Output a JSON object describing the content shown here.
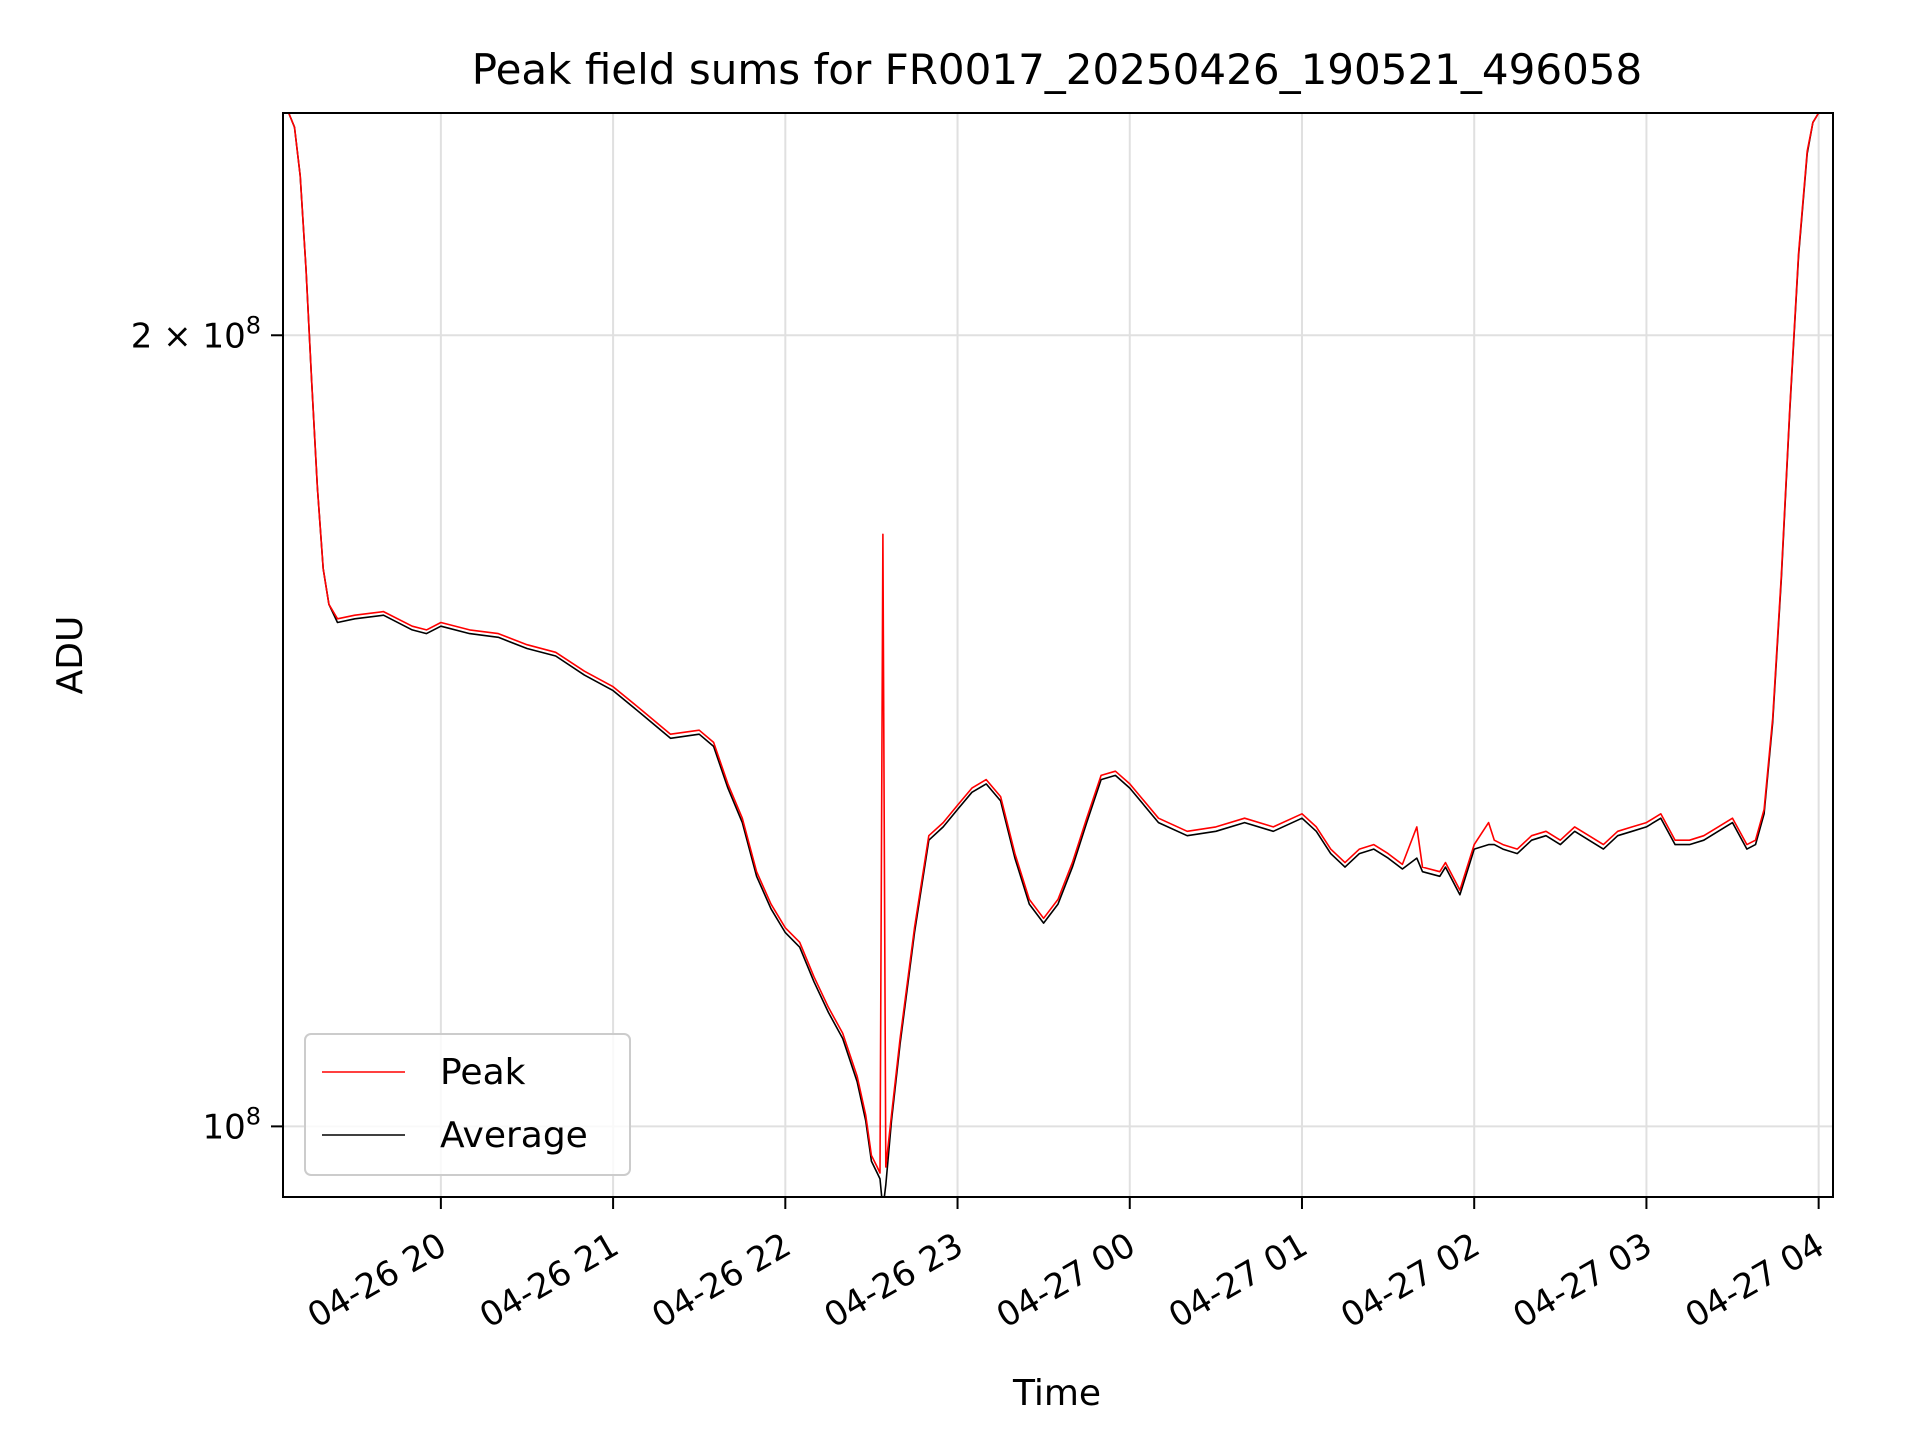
{
  "chart_data": {
    "type": "line",
    "title": "Peak field sums for FR0017_20250426_190521_496058",
    "xlabel": "Time",
    "ylabel": "ADU",
    "x_type": "datetime",
    "y_scale": "log",
    "xlim": [
      "2025-04-26 19:05",
      "2025-04-27 04:05"
    ],
    "ylim": [
      94000000,
      243000000
    ],
    "x_ticks": [
      {
        "value": "2025-04-26 20:00",
        "label": "04-26 20"
      },
      {
        "value": "2025-04-26 21:00",
        "label": "04-26 21"
      },
      {
        "value": "2025-04-26 22:00",
        "label": "04-26 22"
      },
      {
        "value": "2025-04-26 23:00",
        "label": "04-26 23"
      },
      {
        "value": "2025-04-27 00:00",
        "label": "04-27 00"
      },
      {
        "value": "2025-04-27 01:00",
        "label": "04-27 01"
      },
      {
        "value": "2025-04-27 02:00",
        "label": "04-27 02"
      },
      {
        "value": "2025-04-27 03:00",
        "label": "04-27 03"
      },
      {
        "value": "2025-04-27 04:00",
        "label": "04-27 04"
      }
    ],
    "y_ticks": [
      {
        "value": 100000000,
        "label": "10",
        "exp": "8"
      },
      {
        "value": 200000000,
        "label": "2 × 10",
        "exp": "8"
      }
    ],
    "grid": true,
    "legend_position": "lower-left",
    "series": [
      {
        "name": "Peak",
        "color": "#ff0000",
        "points": [
          [
            "2025-04-26 19:05",
            243000000
          ],
          [
            "2025-04-26 19:07",
            243000000
          ],
          [
            "2025-04-26 19:09",
            240000000
          ],
          [
            "2025-04-26 19:11",
            230000000
          ],
          [
            "2025-04-26 19:13",
            212000000
          ],
          [
            "2025-04-26 19:15",
            192000000
          ],
          [
            "2025-04-26 19:17",
            175000000
          ],
          [
            "2025-04-26 19:19",
            163000000
          ],
          [
            "2025-04-26 19:21",
            158000000
          ],
          [
            "2025-04-26 19:24",
            156000000
          ],
          [
            "2025-04-26 19:30",
            156500000
          ],
          [
            "2025-04-26 19:40",
            157000000
          ],
          [
            "2025-04-26 19:50",
            155000000
          ],
          [
            "2025-04-26 19:55",
            154500000
          ],
          [
            "2025-04-26 20:00",
            155500000
          ],
          [
            "2025-04-26 20:10",
            154500000
          ],
          [
            "2025-04-26 20:20",
            154000000
          ],
          [
            "2025-04-26 20:30",
            152500000
          ],
          [
            "2025-04-26 20:40",
            151500000
          ],
          [
            "2025-04-26 20:50",
            149000000
          ],
          [
            "2025-04-26 21:00",
            147000000
          ],
          [
            "2025-04-26 21:10",
            144000000
          ],
          [
            "2025-04-26 21:20",
            141000000
          ],
          [
            "2025-04-26 21:30",
            141500000
          ],
          [
            "2025-04-26 21:35",
            140000000
          ],
          [
            "2025-04-26 21:40",
            135000000
          ],
          [
            "2025-04-26 21:45",
            131000000
          ],
          [
            "2025-04-26 21:50",
            125000000
          ],
          [
            "2025-04-26 21:55",
            121500000
          ],
          [
            "2025-04-26 22:00",
            119000000
          ],
          [
            "2025-04-26 22:05",
            117500000
          ],
          [
            "2025-04-26 22:10",
            114000000
          ],
          [
            "2025-04-26 22:15",
            111000000
          ],
          [
            "2025-04-26 22:20",
            108500000
          ],
          [
            "2025-04-26 22:25",
            104500000
          ],
          [
            "2025-04-26 22:28",
            101000000
          ],
          [
            "2025-04-26 22:30",
            97500000
          ],
          [
            "2025-04-26 22:32",
            96500000
          ],
          [
            "2025-04-26 22:33",
            96000000
          ],
          [
            "2025-04-26 22:34",
            168000000
          ],
          [
            "2025-04-26 22:35",
            96500000
          ],
          [
            "2025-04-26 22:37",
            101000000
          ],
          [
            "2025-04-26 22:40",
            108000000
          ],
          [
            "2025-04-26 22:45",
            119000000
          ],
          [
            "2025-04-26 22:50",
            129000000
          ],
          [
            "2025-04-26 22:55",
            130500000
          ],
          [
            "2025-04-26 23:00",
            132500000
          ],
          [
            "2025-04-26 23:05",
            134500000
          ],
          [
            "2025-04-26 23:10",
            135500000
          ],
          [
            "2025-04-26 23:15",
            133500000
          ],
          [
            "2025-04-26 23:20",
            127000000
          ],
          [
            "2025-04-26 23:25",
            122000000
          ],
          [
            "2025-04-26 23:30",
            120000000
          ],
          [
            "2025-04-26 23:35",
            122000000
          ],
          [
            "2025-04-26 23:40",
            126000000
          ],
          [
            "2025-04-26 23:45",
            131000000
          ],
          [
            "2025-04-26 23:50",
            136000000
          ],
          [
            "2025-04-26 23:55",
            136500000
          ],
          [
            "2025-04-27 00:00",
            135000000
          ],
          [
            "2025-04-27 00:10",
            131000000
          ],
          [
            "2025-04-27 00:20",
            129500000
          ],
          [
            "2025-04-27 00:30",
            130000000
          ],
          [
            "2025-04-27 00:40",
            131000000
          ],
          [
            "2025-04-27 00:50",
            130000000
          ],
          [
            "2025-04-27 01:00",
            131500000
          ],
          [
            "2025-04-27 01:05",
            130000000
          ],
          [
            "2025-04-27 01:10",
            127500000
          ],
          [
            "2025-04-27 01:15",
            126000000
          ],
          [
            "2025-04-27 01:20",
            127500000
          ],
          [
            "2025-04-27 01:25",
            128000000
          ],
          [
            "2025-04-27 01:30",
            127000000
          ],
          [
            "2025-04-27 01:35",
            125800000
          ],
          [
            "2025-04-27 01:40",
            130000000
          ],
          [
            "2025-04-27 01:42",
            125500000
          ],
          [
            "2025-04-27 01:48",
            125000000
          ],
          [
            "2025-04-27 01:50",
            126000000
          ],
          [
            "2025-04-27 01:55",
            123000000
          ],
          [
            "2025-04-27 02:00",
            128000000
          ],
          [
            "2025-04-27 02:05",
            130500000
          ],
          [
            "2025-04-27 02:07",
            128500000
          ],
          [
            "2025-04-27 02:10",
            128000000
          ],
          [
            "2025-04-27 02:15",
            127500000
          ],
          [
            "2025-04-27 02:20",
            129000000
          ],
          [
            "2025-04-27 02:25",
            129500000
          ],
          [
            "2025-04-27 02:30",
            128500000
          ],
          [
            "2025-04-27 02:35",
            130000000
          ],
          [
            "2025-04-27 02:40",
            129000000
          ],
          [
            "2025-04-27 02:45",
            128000000
          ],
          [
            "2025-04-27 02:50",
            129500000
          ],
          [
            "2025-04-27 02:55",
            130000000
          ],
          [
            "2025-04-27 03:00",
            130500000
          ],
          [
            "2025-04-27 03:05",
            131500000
          ],
          [
            "2025-04-27 03:10",
            128500000
          ],
          [
            "2025-04-27 03:15",
            128500000
          ],
          [
            "2025-04-27 03:20",
            129000000
          ],
          [
            "2025-04-27 03:25",
            130000000
          ],
          [
            "2025-04-27 03:30",
            131000000
          ],
          [
            "2025-04-27 03:35",
            128000000
          ],
          [
            "2025-04-27 03:38",
            128500000
          ],
          [
            "2025-04-27 03:41",
            132000000
          ],
          [
            "2025-04-27 03:44",
            143000000
          ],
          [
            "2025-04-27 03:47",
            162000000
          ],
          [
            "2025-04-27 03:50",
            188000000
          ],
          [
            "2025-04-27 03:53",
            215000000
          ],
          [
            "2025-04-27 03:56",
            235000000
          ],
          [
            "2025-04-27 03:58",
            241000000
          ],
          [
            "2025-04-27 04:00",
            243000000
          ],
          [
            "2025-04-27 04:05",
            243000000
          ]
        ]
      },
      {
        "name": "Average",
        "color": "#000000",
        "points": [
          [
            "2025-04-26 19:05",
            243000000
          ],
          [
            "2025-04-26 19:07",
            243000000
          ],
          [
            "2025-04-26 19:09",
            240000000
          ],
          [
            "2025-04-26 19:11",
            230000000
          ],
          [
            "2025-04-26 19:13",
            212000000
          ],
          [
            "2025-04-26 19:15",
            192000000
          ],
          [
            "2025-04-26 19:17",
            175000000
          ],
          [
            "2025-04-26 19:19",
            163000000
          ],
          [
            "2025-04-26 19:21",
            158000000
          ],
          [
            "2025-04-26 19:24",
            155500000
          ],
          [
            "2025-04-26 19:30",
            156000000
          ],
          [
            "2025-04-26 19:40",
            156500000
          ],
          [
            "2025-04-26 19:50",
            154500000
          ],
          [
            "2025-04-26 19:55",
            154000000
          ],
          [
            "2025-04-26 20:00",
            155000000
          ],
          [
            "2025-04-26 20:10",
            154000000
          ],
          [
            "2025-04-26 20:20",
            153500000
          ],
          [
            "2025-04-26 20:30",
            152000000
          ],
          [
            "2025-04-26 20:40",
            151000000
          ],
          [
            "2025-04-26 20:50",
            148500000
          ],
          [
            "2025-04-26 21:00",
            146500000
          ],
          [
            "2025-04-26 21:10",
            143500000
          ],
          [
            "2025-04-26 21:20",
            140500000
          ],
          [
            "2025-04-26 21:30",
            141000000
          ],
          [
            "2025-04-26 21:35",
            139500000
          ],
          [
            "2025-04-26 21:40",
            134500000
          ],
          [
            "2025-04-26 21:45",
            130500000
          ],
          [
            "2025-04-26 21:50",
            124500000
          ],
          [
            "2025-04-26 21:55",
            121000000
          ],
          [
            "2025-04-26 22:00",
            118500000
          ],
          [
            "2025-04-26 22:05",
            117000000
          ],
          [
            "2025-04-26 22:10",
            113500000
          ],
          [
            "2025-04-26 22:15",
            110500000
          ],
          [
            "2025-04-26 22:20",
            108000000
          ],
          [
            "2025-04-26 22:25",
            104000000
          ],
          [
            "2025-04-26 22:28",
            100500000
          ],
          [
            "2025-04-26 22:30",
            97000000
          ],
          [
            "2025-04-26 22:32",
            96000000
          ],
          [
            "2025-04-26 22:33",
            95500000
          ],
          [
            "2025-04-26 22:34",
            93000000
          ],
          [
            "2025-04-26 22:35",
            95000000
          ],
          [
            "2025-04-26 22:37",
            100500000
          ],
          [
            "2025-04-26 22:40",
            107500000
          ],
          [
            "2025-04-26 22:45",
            118500000
          ],
          [
            "2025-04-26 22:50",
            128500000
          ],
          [
            "2025-04-26 22:55",
            130000000
          ],
          [
            "2025-04-26 23:00",
            132000000
          ],
          [
            "2025-04-26 23:05",
            134000000
          ],
          [
            "2025-04-26 23:10",
            135000000
          ],
          [
            "2025-04-26 23:15",
            133000000
          ],
          [
            "2025-04-26 23:20",
            126500000
          ],
          [
            "2025-04-26 23:25",
            121500000
          ],
          [
            "2025-04-26 23:30",
            119500000
          ],
          [
            "2025-04-26 23:35",
            121500000
          ],
          [
            "2025-04-26 23:40",
            125500000
          ],
          [
            "2025-04-26 23:45",
            130500000
          ],
          [
            "2025-04-26 23:50",
            135500000
          ],
          [
            "2025-04-26 23:55",
            136000000
          ],
          [
            "2025-04-27 00:00",
            134500000
          ],
          [
            "2025-04-27 00:10",
            130500000
          ],
          [
            "2025-04-27 00:20",
            129000000
          ],
          [
            "2025-04-27 00:30",
            129500000
          ],
          [
            "2025-04-27 00:40",
            130500000
          ],
          [
            "2025-04-27 00:50",
            129500000
          ],
          [
            "2025-04-27 01:00",
            131000000
          ],
          [
            "2025-04-27 01:05",
            129500000
          ],
          [
            "2025-04-27 01:10",
            127000000
          ],
          [
            "2025-04-27 01:15",
            125500000
          ],
          [
            "2025-04-27 01:20",
            127000000
          ],
          [
            "2025-04-27 01:25",
            127500000
          ],
          [
            "2025-04-27 01:30",
            126500000
          ],
          [
            "2025-04-27 01:35",
            125300000
          ],
          [
            "2025-04-27 01:40",
            126500000
          ],
          [
            "2025-04-27 01:42",
            125000000
          ],
          [
            "2025-04-27 01:48",
            124500000
          ],
          [
            "2025-04-27 01:50",
            125500000
          ],
          [
            "2025-04-27 01:55",
            122500000
          ],
          [
            "2025-04-27 02:00",
            127500000
          ],
          [
            "2025-04-27 02:05",
            128000000
          ],
          [
            "2025-04-27 02:07",
            128000000
          ],
          [
            "2025-04-27 02:10",
            127500000
          ],
          [
            "2025-04-27 02:15",
            127000000
          ],
          [
            "2025-04-27 02:20",
            128500000
          ],
          [
            "2025-04-27 02:25",
            129000000
          ],
          [
            "2025-04-27 02:30",
            128000000
          ],
          [
            "2025-04-27 02:35",
            129500000
          ],
          [
            "2025-04-27 02:40",
            128500000
          ],
          [
            "2025-04-27 02:45",
            127500000
          ],
          [
            "2025-04-27 02:50",
            129000000
          ],
          [
            "2025-04-27 02:55",
            129500000
          ],
          [
            "2025-04-27 03:00",
            130000000
          ],
          [
            "2025-04-27 03:05",
            131000000
          ],
          [
            "2025-04-27 03:10",
            128000000
          ],
          [
            "2025-04-27 03:15",
            128000000
          ],
          [
            "2025-04-27 03:20",
            128500000
          ],
          [
            "2025-04-27 03:25",
            129500000
          ],
          [
            "2025-04-27 03:30",
            130500000
          ],
          [
            "2025-04-27 03:35",
            127500000
          ],
          [
            "2025-04-27 03:38",
            128000000
          ],
          [
            "2025-04-27 03:41",
            131500000
          ],
          [
            "2025-04-27 03:44",
            142500000
          ],
          [
            "2025-04-27 03:47",
            161500000
          ],
          [
            "2025-04-27 03:50",
            187500000
          ],
          [
            "2025-04-27 03:53",
            214500000
          ],
          [
            "2025-04-27 03:56",
            234500000
          ],
          [
            "2025-04-27 03:58",
            241000000
          ],
          [
            "2025-04-27 04:00",
            243000000
          ],
          [
            "2025-04-27 04:05",
            243000000
          ]
        ]
      }
    ]
  }
}
